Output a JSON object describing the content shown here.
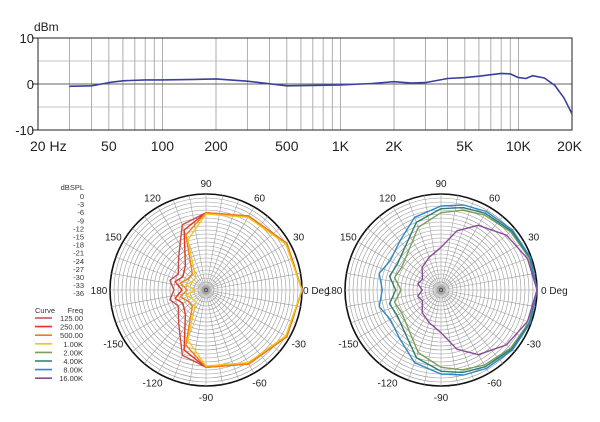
{
  "chart_data": [
    {
      "type": "line",
      "ylabel": "dBm",
      "xscale": "log",
      "xlim": [
        20,
        20000
      ],
      "ylim": [
        -10,
        10
      ],
      "y_ticks": [
        10,
        0,
        -10
      ],
      "x_ticks": [
        {
          "v": 20,
          "label": "20 Hz"
        },
        {
          "v": 50,
          "label": "50"
        },
        {
          "v": 100,
          "label": "100"
        },
        {
          "v": 200,
          "label": "200"
        },
        {
          "v": 500,
          "label": "500"
        },
        {
          "v": 1000,
          "label": "1K"
        },
        {
          "v": 2000,
          "label": "2K"
        },
        {
          "v": 5000,
          "label": "5K"
        },
        {
          "v": 10000,
          "label": "10K"
        },
        {
          "v": 20000,
          "label": "20K"
        }
      ],
      "grid": true,
      "series": [
        {
          "color": "#3b3f9e",
          "x": [
            30,
            40,
            50,
            60,
            80,
            100,
            150,
            200,
            300,
            500,
            700,
            1000,
            1500,
            2000,
            2500,
            3000,
            4000,
            5000,
            6000,
            8000,
            9000,
            10000,
            11000,
            12000,
            14000,
            16000,
            18000,
            20000
          ],
          "y": [
            -0.5,
            -0.4,
            0.3,
            0.7,
            0.9,
            0.9,
            1.0,
            1.1,
            0.6,
            -0.4,
            -0.3,
            -0.2,
            0.1,
            0.5,
            0.2,
            0.3,
            1.2,
            1.4,
            1.7,
            2.3,
            2.2,
            1.4,
            1.2,
            1.8,
            1.3,
            -0.3,
            -3.0,
            -6.5
          ]
        }
      ]
    },
    {
      "type": "polar",
      "ylabel": "dBSPL",
      "r_labels": [
        "0",
        "-3",
        "-6",
        "-9",
        "-12",
        "-15",
        "-18",
        "-21",
        "-24",
        "-27",
        "-30",
        "-33",
        "-36"
      ],
      "rlim": [
        -36,
        0
      ],
      "angle_labels": [
        "0 Deg",
        "30",
        "60",
        "90",
        "120",
        "150",
        "180",
        "-150",
        "-120",
        "-90",
        "-60",
        "-30"
      ],
      "legend_title_curve": "Curve",
      "legend_title_freq": "Freq",
      "legend": [
        {
          "freq": "125.00",
          "color": "#c84a4a"
        },
        {
          "freq": "250.00",
          "color": "#e2341f"
        },
        {
          "freq": "500.00",
          "color": "#f07d17"
        },
        {
          "freq": "1.00K",
          "color": "#f2c61f"
        },
        {
          "freq": "2.00K",
          "color": "#7aa05a"
        },
        {
          "freq": "4.00K",
          "color": "#2f7d72"
        },
        {
          "freq": "8.00K",
          "color": "#2f88c8"
        },
        {
          "freq": "16.00K",
          "color": "#8a4a9a"
        }
      ],
      "series": [
        {
          "freq": "125.00",
          "color": "#c84a4a",
          "angles": [
            0,
            30,
            60,
            90,
            110,
            130,
            150,
            165,
            180
          ],
          "r": [
            0,
            -1,
            -4,
            -7,
            -10,
            -20,
            -24,
            -22,
            -24
          ]
        },
        {
          "freq": "250.00",
          "color": "#e2341f",
          "angles": [
            0,
            30,
            60,
            90,
            110,
            130,
            150,
            165,
            180
          ],
          "r": [
            0,
            -1,
            -4,
            -7,
            -12,
            -24,
            -26,
            -24,
            -27
          ]
        },
        {
          "freq": "500.00",
          "color": "#f07d17",
          "angles": [
            0,
            30,
            60,
            90,
            110,
            130,
            150,
            165,
            180
          ],
          "r": [
            0,
            -1,
            -4,
            -7,
            -14,
            -28,
            -28,
            -26,
            -29
          ]
        },
        {
          "freq": "1.00K",
          "color": "#f2c61f",
          "angles": [
            0,
            30,
            60,
            90,
            110,
            130,
            150,
            165,
            180
          ],
          "r": [
            0,
            -1.5,
            -4.5,
            -7.5,
            -16,
            -30,
            -30,
            -28,
            -32
          ]
        }
      ]
    },
    {
      "type": "polar",
      "rlim": [
        -36,
        0
      ],
      "angle_labels": [
        "0 Deg",
        "30",
        "60",
        "90",
        "120",
        "150",
        "180",
        "-150",
        "-120",
        "-90",
        "-60",
        "-30"
      ],
      "series": [
        {
          "freq": "2.00K",
          "color": "#7aa05a",
          "angles": [
            0,
            20,
            40,
            60,
            75,
            90,
            110,
            130,
            150,
            165,
            180
          ],
          "r": [
            0,
            -0.8,
            -2.0,
            -3.5,
            -5.0,
            -7.0,
            -11,
            -17,
            -19,
            -18,
            -21
          ]
        },
        {
          "freq": "4.00K",
          "color": "#2f7d72",
          "angles": [
            0,
            20,
            40,
            60,
            75,
            90,
            110,
            130,
            150,
            165,
            180
          ],
          "r": [
            0,
            -0.5,
            -1.5,
            -2.8,
            -4.0,
            -5.5,
            -9,
            -15,
            -17,
            -16,
            -19
          ]
        },
        {
          "freq": "8.00K",
          "color": "#2f88c8",
          "angles": [
            0,
            20,
            40,
            60,
            75,
            90,
            110,
            130,
            150,
            165,
            180
          ],
          "r": [
            0,
            -0.3,
            -1.0,
            -2.0,
            -3.0,
            -4.5,
            -7,
            -12,
            -14,
            -12,
            -14
          ]
        },
        {
          "freq": "16.00K",
          "color": "#8a4a9a",
          "angles": [
            0,
            20,
            40,
            60,
            75,
            90,
            110,
            130,
            150,
            165,
            180
          ],
          "r": [
            0,
            -1.5,
            -4.0,
            -8.0,
            -13,
            -20,
            -23,
            -25,
            -28,
            -27,
            -29
          ]
        }
      ]
    }
  ]
}
